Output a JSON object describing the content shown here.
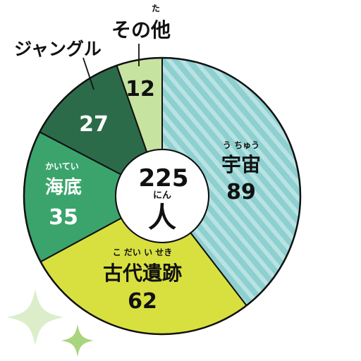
{
  "chart_data": {
    "type": "pie",
    "total": {
      "value": "225",
      "unit_ruby": "にん",
      "unit": "人"
    },
    "slices": [
      {
        "key": "uchu",
        "label": "宇宙",
        "ruby": "う ちゅう",
        "value": 89,
        "color": "#8ecfd0",
        "hatched": true
      },
      {
        "key": "kodai",
        "label": "古代遺跡",
        "ruby": "こ だい い せき",
        "value": 62,
        "color": "#d8e040"
      },
      {
        "key": "kaitei",
        "label": "海底",
        "ruby": "かいてい",
        "value": 35,
        "color": "#3aa46c"
      },
      {
        "key": "jungle",
        "label": "ジャングル",
        "ruby": "",
        "value": 27,
        "color": "#2c6b4a"
      },
      {
        "key": "sonota",
        "label": "その他",
        "ruby": "た",
        "value": 12,
        "color": "#c7e3a0"
      }
    ]
  }
}
